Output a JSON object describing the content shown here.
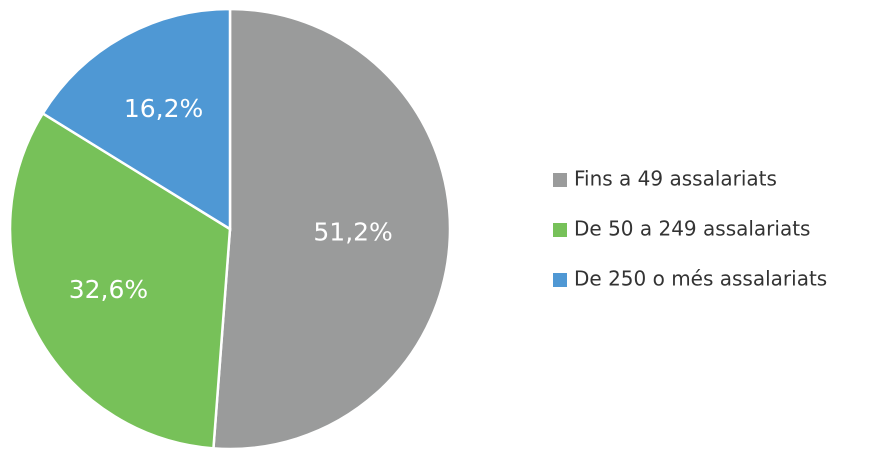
{
  "chart_data": {
    "type": "pie",
    "categories": [
      "Fins a 49 assalariats",
      "De 50 a 249 assalariats",
      "De 250 o més assalariats"
    ],
    "values": [
      51.2,
      32.6,
      16.2
    ],
    "value_labels": [
      "51,2%",
      "32,6%",
      "16,2%"
    ],
    "colors": [
      "#9a9b9b",
      "#77c159",
      "#4f98d4"
    ],
    "legend": "right"
  }
}
